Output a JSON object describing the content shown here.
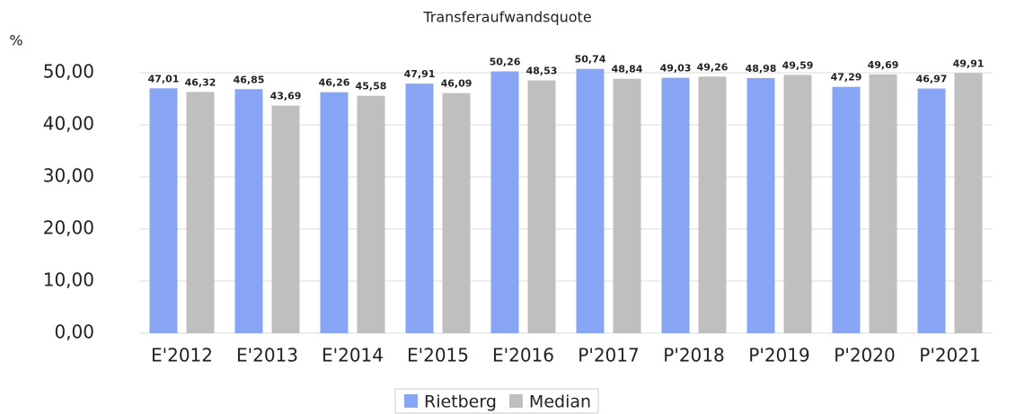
{
  "chart_data": {
    "type": "bar",
    "title": "Transferaufwandsquote",
    "y_label": "%",
    "categories": [
      "E'2012",
      "E'2013",
      "E'2014",
      "E'2015",
      "E'2016",
      "P'2017",
      "P'2018",
      "P'2019",
      "P'2020",
      "P'2021"
    ],
    "series": [
      {
        "name": "Rietberg",
        "color": "#88a4f5",
        "values": [
          47.01,
          46.85,
          46.26,
          47.91,
          50.26,
          50.74,
          49.03,
          48.98,
          47.29,
          46.97
        ],
        "value_labels": [
          "47,01",
          "46,85",
          "46,26",
          "47,91",
          "50,26",
          "50,74",
          "49,03",
          "48,98",
          "47,29",
          "46,97"
        ]
      },
      {
        "name": "Median",
        "color": "#bfbfbf",
        "values": [
          46.32,
          43.69,
          45.58,
          46.09,
          48.53,
          48.84,
          49.26,
          49.59,
          49.69,
          49.91
        ],
        "value_labels": [
          "46,32",
          "43,69",
          "45,58",
          "46,09",
          "48,53",
          "48,84",
          "49,26",
          "49,59",
          "49,69",
          "49,91"
        ]
      }
    ],
    "ylim": [
      0,
      55
    ],
    "yticks": [
      {
        "value": 0,
        "label": "0,00"
      },
      {
        "value": 10,
        "label": "10,00"
      },
      {
        "value": 20,
        "label": "20,00"
      },
      {
        "value": 30,
        "label": "30,00"
      },
      {
        "value": 40,
        "label": "40,00"
      },
      {
        "value": 50,
        "label": "50,00"
      }
    ],
    "grid": true,
    "legend": "bottom"
  }
}
